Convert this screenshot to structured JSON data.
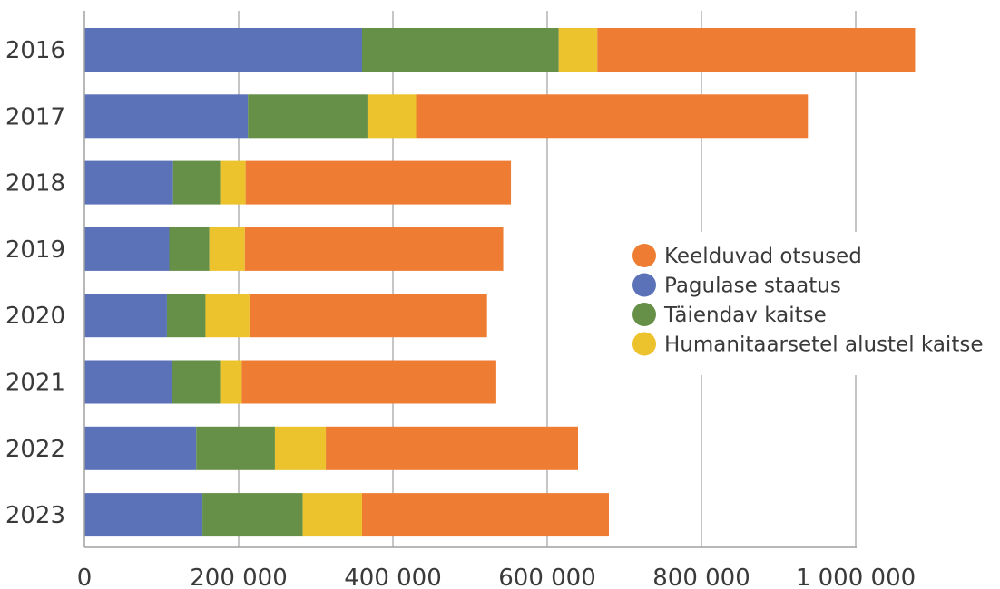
{
  "chart_data": {
    "type": "bar",
    "orientation": "horizontal",
    "stacked": true,
    "categories": [
      "2016",
      "2017",
      "2018",
      "2019",
      "2020",
      "2021",
      "2022",
      "2023"
    ],
    "series": [
      {
        "name": "Pagulase staatus",
        "color": "#5b72b8",
        "values": [
          360000,
          212000,
          115000,
          110000,
          107000,
          114000,
          145000,
          153000
        ]
      },
      {
        "name": "Täiendav kaitse",
        "color": "#668f47",
        "values": [
          255000,
          155000,
          61000,
          52000,
          50000,
          62000,
          102000,
          130000
        ]
      },
      {
        "name": "Humanitaarsetel alustel kaitse",
        "color": "#ecc22d",
        "values": [
          50000,
          63000,
          33000,
          46000,
          57000,
          28000,
          66000,
          77000
        ]
      },
      {
        "name": "Keelduvad otsused",
        "color": "#ee7d33",
        "values": [
          412000,
          508000,
          344000,
          335000,
          308000,
          330000,
          327000,
          320000
        ]
      }
    ],
    "legend_order": [
      "Keelduvad otsused",
      "Pagulase staatus",
      "Täiendav kaitse",
      "Humanitaarsetel alustel kaitse"
    ],
    "xlim": [
      0,
      1000000
    ],
    "xticks": [
      0,
      200000,
      400000,
      600000,
      800000,
      1000000
    ],
    "xtick_labels": [
      "0",
      "200 000",
      "400 000",
      "600 000",
      "800 000",
      "1 000 000"
    ],
    "grid": true,
    "legend_position": "right"
  }
}
